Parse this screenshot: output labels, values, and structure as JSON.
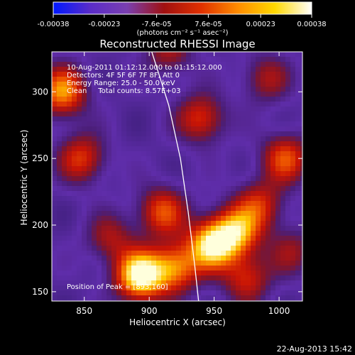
{
  "chart_data": {
    "type": "heatmap",
    "title": "Reconstructed RHESSI Image",
    "xlabel": "Heliocentric X (arcsec)",
    "ylabel": "Heliocentric Y (arcsec)",
    "xlim": [
      825,
      1018
    ],
    "ylim": [
      143,
      330
    ],
    "x_ticks": [
      850,
      900,
      950,
      1000
    ],
    "x_tick_labels": [
      "850",
      "900",
      "950",
      "1000"
    ],
    "y_ticks": [
      150,
      200,
      250,
      300
    ],
    "y_tick_labels": [
      "150",
      "200",
      "250",
      "300"
    ],
    "colorbar": {
      "unit_label": "(photons cm⁻² s⁻¹ asec⁻²)",
      "ticks": [
        -0.00038,
        -0.00023,
        -7.6e-05,
        7.6e-05,
        0.00023,
        0.00038
      ],
      "tick_labels": [
        "-0.00038",
        "-0.00023",
        "-7.6e-05",
        "7.6e-05",
        "0.00023",
        "0.00038"
      ],
      "range": [
        -0.00038,
        0.00038
      ],
      "colors": [
        "#0018ff",
        "#5a2cc8",
        "#7a3fb0",
        "#a01010",
        "#e03000",
        "#ff8c00",
        "#ffd800",
        "#ffffff"
      ]
    },
    "annotations": {
      "time_range": "10-Aug-2011 01:12:12.000 to 01:15:12.000",
      "detectors": "Detectors: 4F 5F 6F 7F 8F, Att 0",
      "energy": "Energy Range: 25.0 - 50.0 keV",
      "clean": "Clean     Total counts: 8.57E+03",
      "peak": "Position of Peak = [893,160]"
    },
    "peak_position": [
      893,
      160
    ],
    "limb_curve": [
      [
        902,
        330
      ],
      [
        915,
        290
      ],
      [
        924,
        250
      ],
      [
        930,
        210
      ],
      [
        935,
        170
      ],
      [
        938,
        143
      ]
    ],
    "sources": [
      {
        "x": 893,
        "y": 162,
        "amp": 1.0
      },
      {
        "x": 920,
        "y": 168,
        "amp": 0.65
      },
      {
        "x": 948,
        "y": 185,
        "amp": 0.85
      },
      {
        "x": 967,
        "y": 195,
        "amp": 0.7
      },
      {
        "x": 910,
        "y": 210,
        "amp": 0.55
      },
      {
        "x": 975,
        "y": 160,
        "amp": 0.45
      },
      {
        "x": 833,
        "y": 300,
        "amp": 0.7
      },
      {
        "x": 848,
        "y": 250,
        "amp": 0.5
      },
      {
        "x": 940,
        "y": 280,
        "amp": 0.5
      },
      {
        "x": 1005,
        "y": 250,
        "amp": 0.55
      },
      {
        "x": 985,
        "y": 215,
        "amp": 0.45
      },
      {
        "x": 990,
        "y": 310,
        "amp": 0.35
      },
      {
        "x": 870,
        "y": 190,
        "amp": 0.35
      },
      {
        "x": 1010,
        "y": 180,
        "amp": 0.3
      },
      {
        "x": 915,
        "y": 330,
        "amp": 0.35
      }
    ]
  },
  "footer": {
    "date_stamp": "22-Aug-2013 15:42"
  }
}
